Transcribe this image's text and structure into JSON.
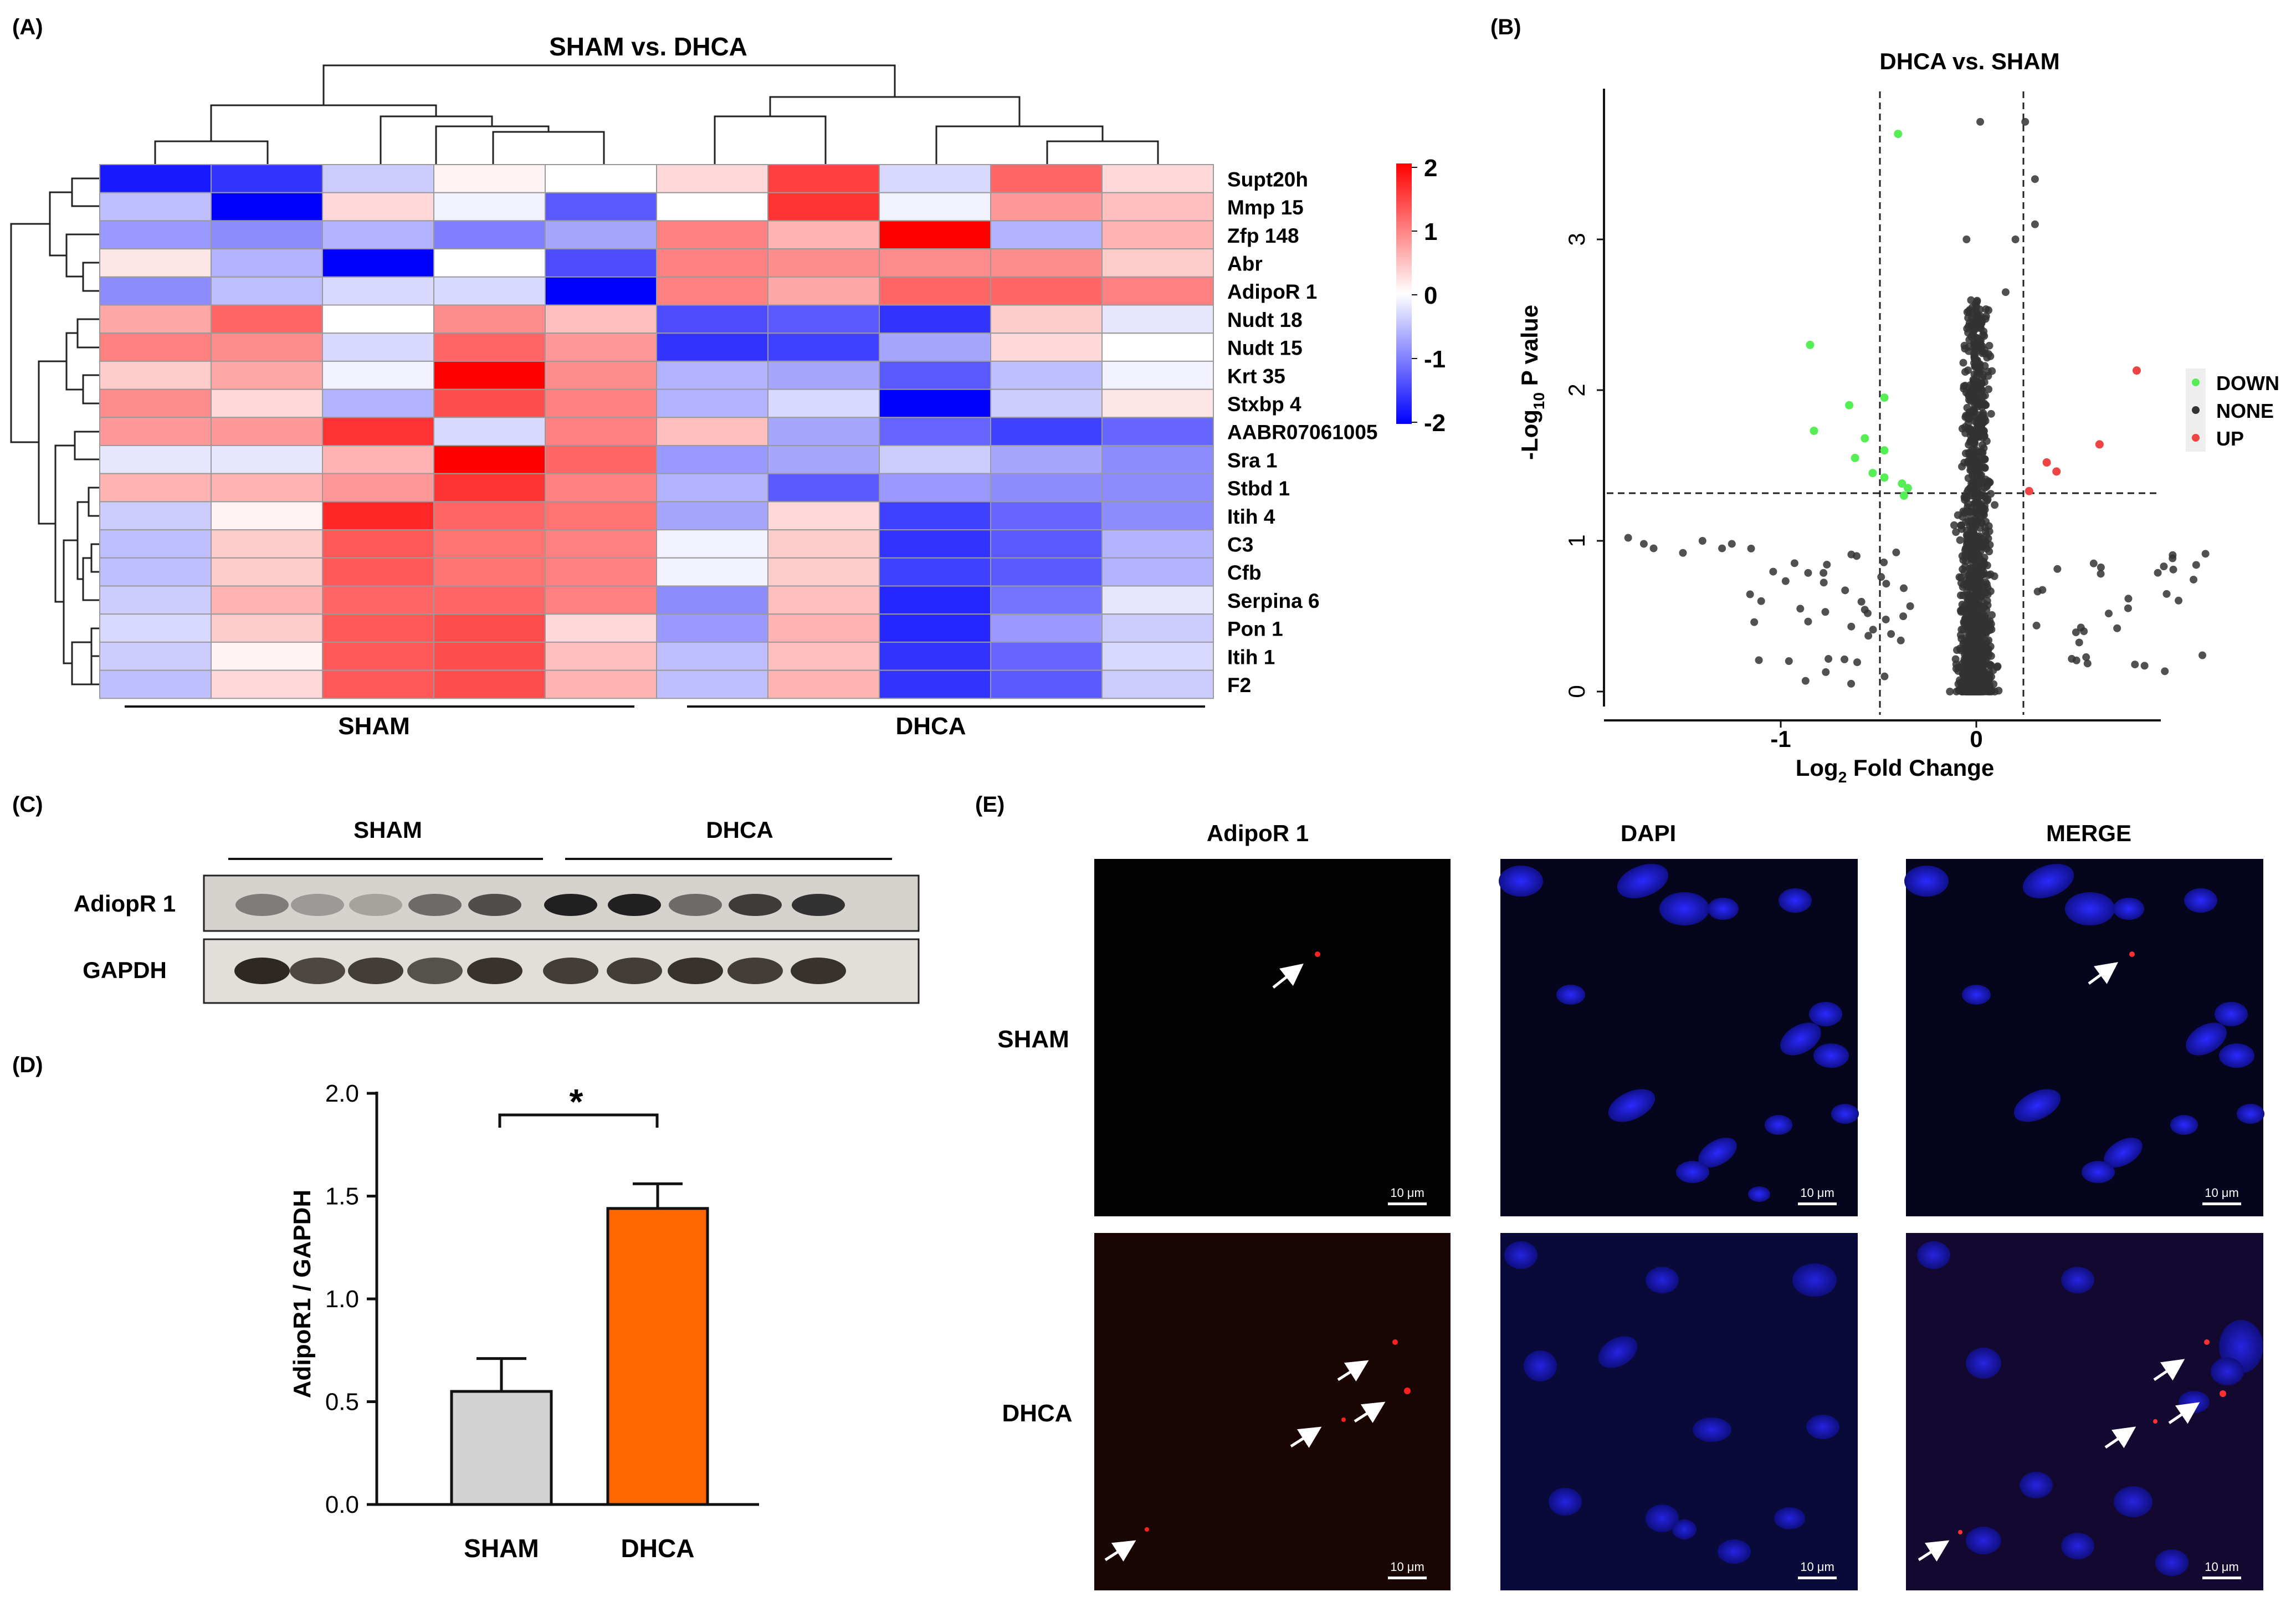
{
  "panel_labels": {
    "A": "(A)",
    "B": "(B)",
    "C": "(C)",
    "D": "(D)",
    "E": "(E)"
  },
  "colors": {
    "blue": "#0000ff",
    "white": "#ffffff",
    "red": "#ff0000",
    "bar_sham": "#d3d3d3",
    "bar_dhca": "#ff6600",
    "down": "#55ee55",
    "none": "#333333",
    "up": "#ee4444"
  },
  "heatmap": {
    "title": "SHAM vs. DHCA",
    "genes": [
      "Supt20h",
      "Mmp 15",
      "Zfp 148",
      "Abr",
      "AdipoR 1",
      "Nudt 18",
      "Nudt 15",
      "Krt 35",
      "Stxbp 4",
      "AABR07061005",
      "Sra 1",
      "Stbd 1",
      "Itih 4",
      "C3",
      "Cfb",
      "Serpina 6",
      "Pon 1",
      "Itih 1",
      "F2"
    ],
    "groups": [
      "SHAM",
      "DHCA"
    ],
    "colorbar_ticks": [
      "2",
      "1",
      "0",
      "-1",
      "-2"
    ],
    "values": [
      [
        -1.8,
        -1.6,
        -0.4,
        0.1,
        0.0,
        0.3,
        1.5,
        -0.3,
        1.2,
        0.3
      ],
      [
        -0.5,
        -2.0,
        0.3,
        -0.1,
        -1.3,
        0.0,
        1.6,
        -0.1,
        0.8,
        0.5
      ],
      [
        -0.8,
        -0.9,
        -0.6,
        -1.0,
        -0.7,
        1.0,
        0.6,
        2.0,
        -0.6,
        0.6
      ],
      [
        0.2,
        -0.6,
        -2.0,
        0.0,
        -1.4,
        1.0,
        0.9,
        0.9,
        0.9,
        0.4
      ],
      [
        -0.9,
        -0.5,
        -0.3,
        -0.3,
        -2.0,
        1.0,
        0.7,
        1.2,
        1.2,
        1.0
      ],
      [
        0.7,
        1.2,
        0.0,
        0.9,
        0.5,
        -1.4,
        -1.3,
        -1.6,
        0.4,
        -0.2
      ],
      [
        1.0,
        0.9,
        -0.3,
        1.2,
        0.8,
        -1.6,
        -1.5,
        -0.7,
        0.3,
        0.0
      ],
      [
        0.4,
        0.7,
        -0.1,
        2.0,
        0.9,
        -0.6,
        -0.7,
        -1.3,
        -0.5,
        -0.1
      ],
      [
        0.9,
        0.3,
        -0.6,
        1.4,
        1.0,
        -0.6,
        -0.3,
        -2.0,
        -0.4,
        0.2
      ],
      [
        0.8,
        0.8,
        1.6,
        -0.3,
        1.0,
        0.5,
        -0.7,
        -1.2,
        -1.5,
        -1.2
      ],
      [
        -0.2,
        -0.2,
        0.6,
        2.0,
        1.2,
        -0.8,
        -0.7,
        -0.4,
        -0.7,
        -0.9
      ],
      [
        0.6,
        0.6,
        0.8,
        1.6,
        1.0,
        -0.6,
        -1.3,
        -0.8,
        -0.9,
        -0.9
      ],
      [
        -0.4,
        0.1,
        1.7,
        1.2,
        1.1,
        -0.7,
        0.3,
        -1.5,
        -1.2,
        -0.9
      ],
      [
        -0.5,
        0.4,
        1.3,
        1.1,
        1.0,
        -0.1,
        0.4,
        -1.6,
        -1.3,
        -0.6
      ],
      [
        -0.5,
        0.4,
        1.3,
        1.1,
        1.0,
        -0.1,
        0.4,
        -1.5,
        -1.3,
        -0.6
      ],
      [
        -0.4,
        0.6,
        1.2,
        1.2,
        1.0,
        -0.9,
        0.5,
        -1.7,
        -1.1,
        -0.2
      ],
      [
        -0.3,
        0.4,
        1.3,
        1.4,
        0.3,
        -0.8,
        0.6,
        -1.7,
        -0.8,
        -0.4
      ],
      [
        -0.4,
        0.1,
        1.3,
        1.4,
        0.5,
        -0.5,
        0.5,
        -1.6,
        -1.2,
        -0.3
      ],
      [
        -0.5,
        0.3,
        1.3,
        1.4,
        0.6,
        -0.5,
        0.6,
        -1.6,
        -1.3,
        -0.4
      ]
    ]
  },
  "volcano": {
    "title": "DHCA vs. SHAM",
    "xlabel_main": "Log",
    "xlabel_sub": "2",
    "xlabel_rest": " Fold Change",
    "ylabel_pre": "-Log",
    "ylabel_sub": "10",
    "ylabel_rest": " P value",
    "x_ticks": [
      "-1",
      "0"
    ],
    "y_ticks": [
      "0",
      "1",
      "2",
      "3"
    ],
    "legend": [
      "DOWN",
      "NONE",
      "UP"
    ]
  },
  "western": {
    "groups": [
      "SHAM",
      "DHCA"
    ],
    "rows": [
      "AdiopR 1",
      "GAPDH"
    ]
  },
  "chart_data": {
    "type": "bar",
    "categories": [
      "SHAM",
      "DHCA"
    ],
    "values": [
      0.55,
      1.44
    ],
    "errors": [
      0.16,
      0.12
    ],
    "ylabel": "AdipoR1 / GAPDH",
    "ylim": [
      0,
      2.0
    ],
    "y_ticks": [
      "0.0",
      "0.5",
      "1.0",
      "1.5",
      "2.0"
    ],
    "significance": "*"
  },
  "microscopy": {
    "columns": [
      "AdipoR 1",
      "DAPI",
      "MERGE"
    ],
    "rows": [
      "SHAM",
      "DHCA"
    ],
    "scale_bar": "10 μm"
  }
}
